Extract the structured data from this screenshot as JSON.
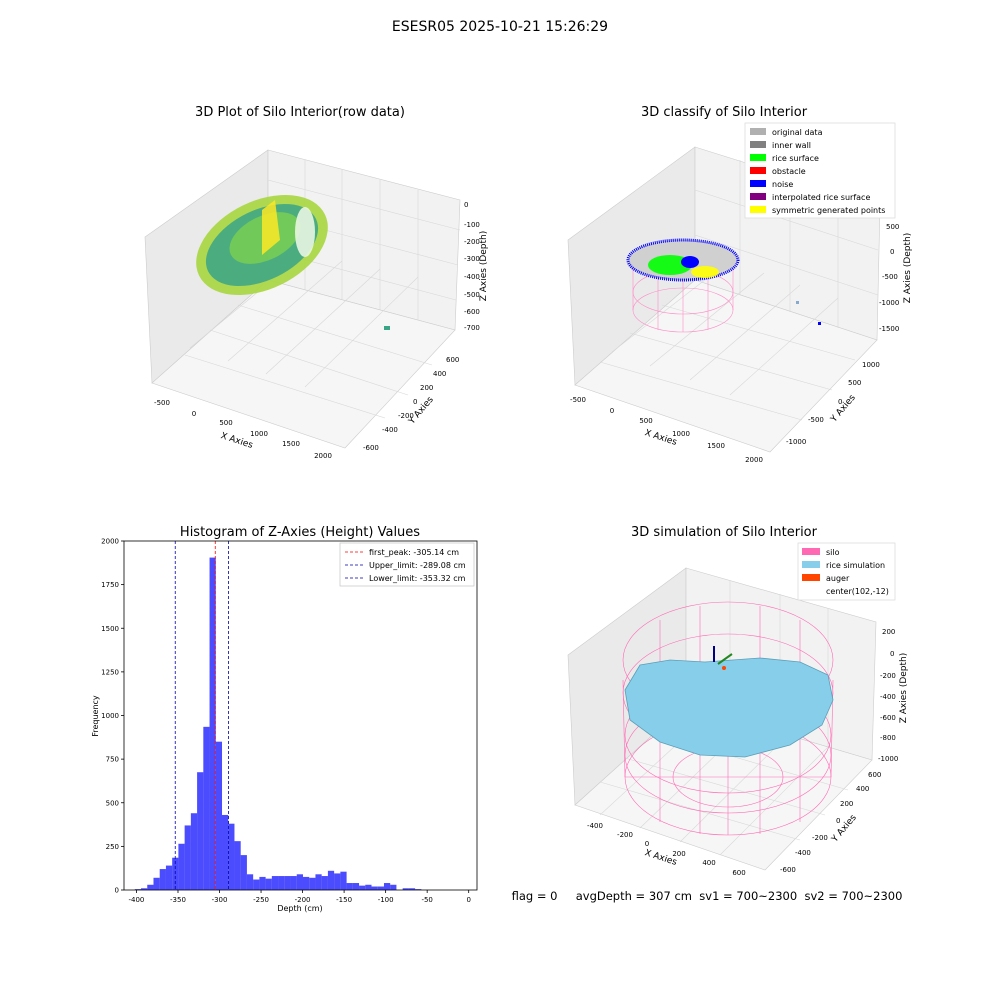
{
  "suptitle": "ESESR05 2025-10-21 15:26:29",
  "status_line": "flag = 0     avgDepth = 307 cm  sv1 = 700~2300  sv2 = 700~2300",
  "chart_data": [
    {
      "type": "scatter3d",
      "title": "3D Plot of Silo Interior(row data)",
      "xlabel": "X Axies",
      "ylabel": "Y Axies",
      "zlabel": "Z Axies (Depth)",
      "xticks": [
        "-500",
        "0",
        "500",
        "1000",
        "1500",
        "2000"
      ],
      "yticks": [
        "-600",
        "-400",
        "-200",
        "0",
        "200",
        "400",
        "600"
      ],
      "zticks": [
        "0",
        "-100",
        "-200",
        "-300",
        "-400",
        "-500",
        "-600",
        "-700"
      ],
      "colormap": [
        "#21918c",
        "#5ec962",
        "#fde725"
      ]
    },
    {
      "type": "scatter3d",
      "title": "3D classify of Silo Interior",
      "xlabel": "X Axies",
      "ylabel": "Y Axies",
      "zlabel": "Z Axies (Depth)",
      "xticks": [
        "-500",
        "0",
        "500",
        "1000",
        "1500",
        "2000"
      ],
      "yticks": [
        "-1000",
        "-500",
        "0",
        "500",
        "1000"
      ],
      "zticks": [
        "500",
        "0",
        "-500",
        "-1000",
        "-1500"
      ],
      "legend_position": "top-right",
      "legend": [
        {
          "label": "original data",
          "color": "#b0b0b0"
        },
        {
          "label": "inner wall",
          "color": "#808080"
        },
        {
          "label": "rice surface",
          "color": "#00ff00"
        },
        {
          "label": "obstacle",
          "color": "#ff0000"
        },
        {
          "label": "noise",
          "color": "#0000ff"
        },
        {
          "label": "interpolated rice surface",
          "color": "#800080"
        },
        {
          "label": "symmetric generated points",
          "color": "#ffff00"
        }
      ]
    },
    {
      "type": "bar",
      "title": "Histogram of Z-Axies (Height) Values",
      "xlabel": "Depth (cm)",
      "ylabel": "Frequency",
      "xlim": [
        -415,
        10
      ],
      "ylim": [
        0,
        2000
      ],
      "xticks": [
        -400,
        -350,
        -300,
        -250,
        -200,
        -150,
        -100,
        -50,
        0
      ],
      "yticks": [
        0,
        250,
        500,
        750,
        1000,
        1250,
        1500,
        1750,
        2000
      ],
      "bar_color": "#0000ff",
      "bin_width": 7.5,
      "bin_start": -402,
      "values": [
        5,
        10,
        30,
        70,
        120,
        140,
        185,
        265,
        370,
        440,
        675,
        935,
        1905,
        850,
        430,
        380,
        280,
        200,
        90,
        60,
        75,
        65,
        80,
        80,
        80,
        80,
        90,
        75,
        70,
        90,
        80,
        110,
        95,
        105,
        40,
        40,
        25,
        30,
        20,
        20,
        40,
        30,
        0,
        10,
        10,
        5
      ],
      "lines": [
        {
          "label": "first_peak: -305.14 cm",
          "x": -305.14,
          "color": "#ff0000"
        },
        {
          "label": "Upper_limit: -289.08 cm",
          "x": -289.08,
          "color": "#0000aa"
        },
        {
          "label": "Lower_limit: -353.32 cm",
          "x": -353.32,
          "color": "#0000aa"
        }
      ],
      "legend_position": "top-right"
    },
    {
      "type": "surface3d",
      "title": "3D simulation of Silo Interior",
      "xlabel": "X Axies",
      "ylabel": "Y Axies",
      "zlabel": "Z Axies (Depth)",
      "xticks": [
        "-400",
        "-200",
        "0",
        "200",
        "400",
        "600"
      ],
      "yticks": [
        "-600",
        "-400",
        "-200",
        "0",
        "200",
        "400",
        "600"
      ],
      "zticks": [
        "200",
        "0",
        "-200",
        "-400",
        "-600",
        "-800",
        "-1000"
      ],
      "legend_position": "top-right",
      "legend": [
        {
          "label": "silo",
          "color": "#ff69b4"
        },
        {
          "label": "rice simulation",
          "color": "#87ceeb"
        },
        {
          "label": "auger",
          "color": "#ff4500"
        },
        {
          "label": "center(102,-12)",
          "color": ""
        }
      ]
    }
  ]
}
